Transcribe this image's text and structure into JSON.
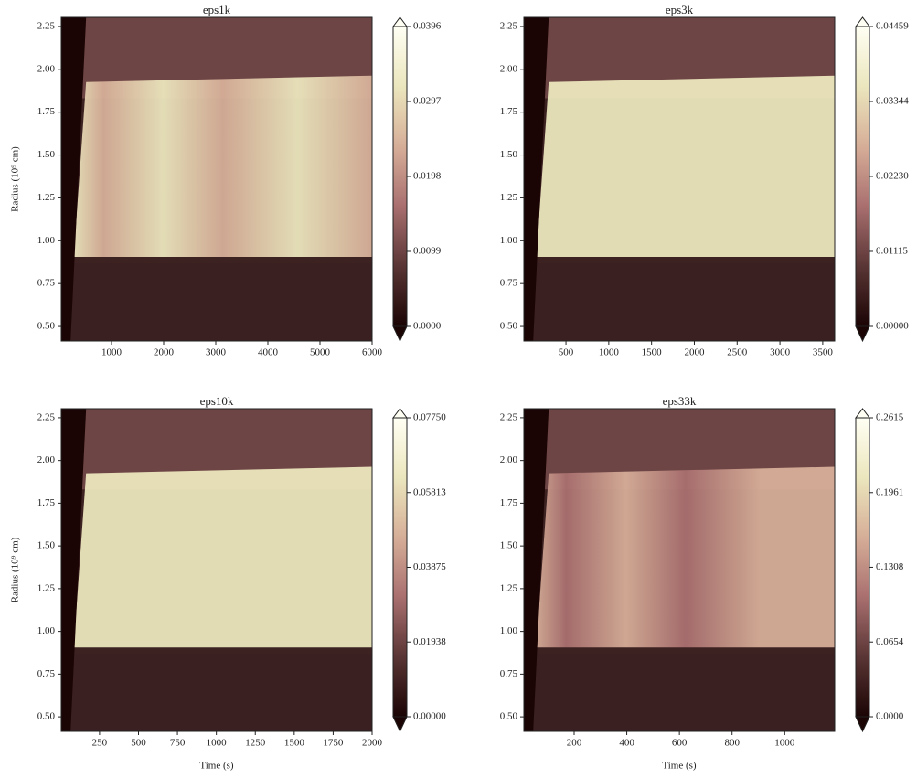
{
  "chart_data": [
    {
      "type": "heatmap",
      "title": "eps1k",
      "y_label": "Radius (10⁹ cm)",
      "xlim": [
        35,
        6000
      ],
      "xticks": [
        1000,
        2000,
        3000,
        4000,
        5000,
        6000
      ],
      "ylim": [
        0.415,
        2.303
      ],
      "yticks": [
        {
          "value": 0.5,
          "label": "0.50"
        },
        {
          "value": 0.75,
          "label": "0.75"
        },
        {
          "value": 1,
          "label": "1.00"
        },
        {
          "value": 1.25,
          "label": "1.25"
        },
        {
          "value": 1.5,
          "label": "1.50"
        },
        {
          "value": 1.75,
          "label": "1.75"
        },
        {
          "value": 2,
          "label": "2.00"
        },
        {
          "value": 2.25,
          "label": "2.25"
        }
      ],
      "clim": [
        0,
        0.0396
      ],
      "cticks": [
        {
          "value": 0,
          "label": "0.0000"
        },
        {
          "value": 0.0099,
          "label": "0.0099"
        },
        {
          "value": 0.0198,
          "label": "0.0198"
        },
        {
          "value": 0.0297,
          "label": "0.0297"
        },
        {
          "value": 0.0396,
          "label": "0.0396"
        }
      ],
      "colormap": [
        "#1b0404",
        "#5a3535",
        "#a96f6f",
        "#d6ae98",
        "#ebe6bd",
        "#fffff4"
      ]
    },
    {
      "type": "heatmap",
      "title": "eps3k",
      "xlim": [
        8,
        3640
      ],
      "xticks": [
        500,
        1000,
        1500,
        2000,
        2500,
        3000,
        3500
      ],
      "ylim": [
        0.415,
        2.303
      ],
      "yticks": [
        {
          "value": 0.5,
          "label": "0.50"
        },
        {
          "value": 0.75,
          "label": "0.75"
        },
        {
          "value": 1,
          "label": "1.00"
        },
        {
          "value": 1.25,
          "label": "1.25"
        },
        {
          "value": 1.5,
          "label": "1.50"
        },
        {
          "value": 1.75,
          "label": "1.75"
        },
        {
          "value": 2,
          "label": "2.00"
        },
        {
          "value": 2.25,
          "label": "2.25"
        }
      ],
      "clim": [
        0,
        0.04459
      ],
      "cticks": [
        {
          "value": 0,
          "label": "0.00000"
        },
        {
          "value": 0.01115,
          "label": "0.01115"
        },
        {
          "value": 0.0223,
          "label": "0.02230"
        },
        {
          "value": 0.03344,
          "label": "0.03344"
        },
        {
          "value": 0.04459,
          "label": "0.04459"
        }
      ],
      "colormap": [
        "#1b0404",
        "#5a3535",
        "#a96f6f",
        "#d6ae98",
        "#ebe6bd",
        "#fffff4"
      ]
    },
    {
      "type": "heatmap",
      "title": "eps10k",
      "x_label": "Time (s)",
      "y_label": "Radius (10⁹ cm)",
      "xlim": [
        4,
        2000
      ],
      "xticks": [
        250,
        500,
        750,
        1000,
        1250,
        1500,
        1750,
        2000
      ],
      "ylim": [
        0.415,
        2.303
      ],
      "yticks": [
        {
          "value": 0.5,
          "label": "0.50"
        },
        {
          "value": 0.75,
          "label": "0.75"
        },
        {
          "value": 1,
          "label": "1.00"
        },
        {
          "value": 1.25,
          "label": "1.25"
        },
        {
          "value": 1.5,
          "label": "1.50"
        },
        {
          "value": 1.75,
          "label": "1.75"
        },
        {
          "value": 2,
          "label": "2.00"
        },
        {
          "value": 2.25,
          "label": "2.25"
        }
      ],
      "clim": [
        0,
        0.0775
      ],
      "cticks": [
        {
          "value": 0,
          "label": "0.00000"
        },
        {
          "value": 0.01938,
          "label": "0.01938"
        },
        {
          "value": 0.03875,
          "label": "0.03875"
        },
        {
          "value": 0.05813,
          "label": "0.05813"
        },
        {
          "value": 0.0775,
          "label": "0.07750"
        }
      ],
      "colormap": [
        "#1b0404",
        "#5a3535",
        "#a96f6f",
        "#d6ae98",
        "#ebe6bd",
        "#fffff4"
      ]
    },
    {
      "type": "heatmap",
      "title": "eps33k",
      "x_label": "Time (s)",
      "xlim": [
        9,
        1190
      ],
      "xticks": [
        200,
        400,
        600,
        800,
        1000
      ],
      "ylim": [
        0.415,
        2.303
      ],
      "yticks": [
        {
          "value": 0.5,
          "label": "0.50"
        },
        {
          "value": 0.75,
          "label": "0.75"
        },
        {
          "value": 1,
          "label": "1.00"
        },
        {
          "value": 1.25,
          "label": "1.25"
        },
        {
          "value": 1.5,
          "label": "1.50"
        },
        {
          "value": 1.75,
          "label": "1.75"
        },
        {
          "value": 2,
          "label": "2.00"
        },
        {
          "value": 2.25,
          "label": "2.25"
        }
      ],
      "clim": [
        0,
        0.2615
      ],
      "cticks": [
        {
          "value": 0,
          "label": "0.0000"
        },
        {
          "value": 0.0654,
          "label": "0.0654"
        },
        {
          "value": 0.1308,
          "label": "0.1308"
        },
        {
          "value": 0.1961,
          "label": "0.1961"
        },
        {
          "value": 0.2615,
          "label": "0.2615"
        }
      ],
      "colormap": [
        "#1b0404",
        "#5a3535",
        "#a96f6f",
        "#d6ae98",
        "#ebe6bd",
        "#fffff4"
      ]
    }
  ]
}
